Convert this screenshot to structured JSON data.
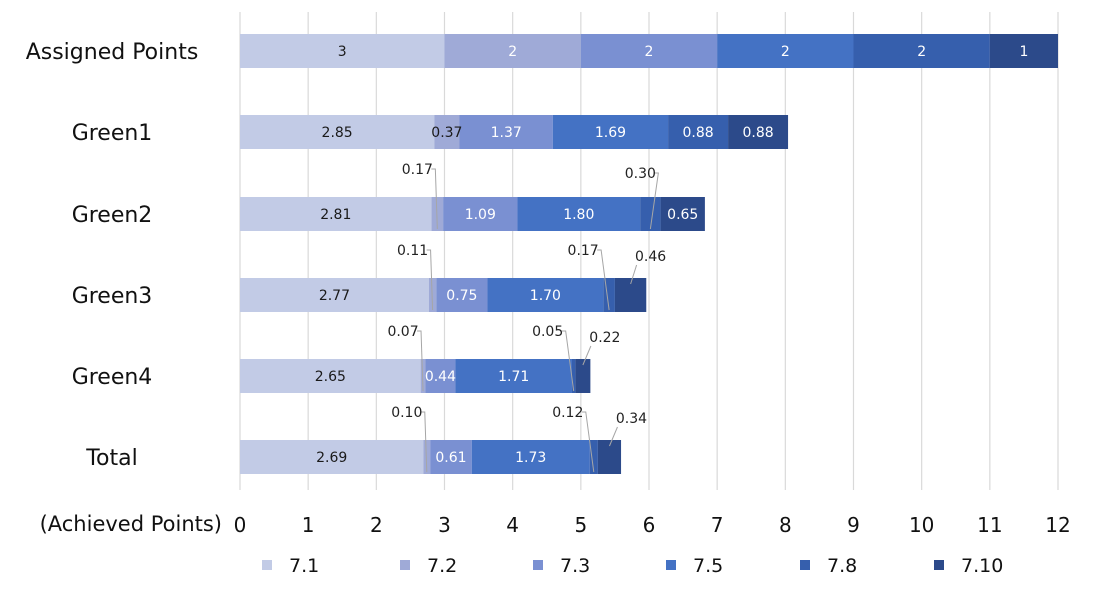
{
  "chart_data": {
    "type": "bar",
    "orientation": "horizontal",
    "stacked": true,
    "xlabel": "(Achieved Points)",
    "xlim": [
      0,
      12
    ],
    "x_ticks": [
      "0",
      "1",
      "2",
      "3",
      "4",
      "5",
      "6",
      "7",
      "8",
      "9",
      "10",
      "11",
      "12"
    ],
    "grid": "vertical",
    "legend_position": "bottom",
    "categories": [
      "Assigned Points",
      "Green1",
      "Green2",
      "Green3",
      "Green4",
      "Total"
    ],
    "series": [
      {
        "name": "7.1",
        "color": "#c2cbe6",
        "values": [
          3,
          2.85,
          2.81,
          2.77,
          2.65,
          2.69
        ],
        "labels": [
          "3",
          "2.85",
          "2.81",
          "2.77",
          "2.65",
          "2.69"
        ]
      },
      {
        "name": "7.2",
        "color": "#9faad7",
        "values": [
          2,
          0.37,
          0.17,
          0.11,
          0.07,
          0.1
        ],
        "labels": [
          "2",
          "0.37",
          "0.17",
          "0.11",
          "0.07",
          "0.10"
        ]
      },
      {
        "name": "7.3",
        "color": "#7a90d2",
        "values": [
          2,
          1.37,
          1.09,
          0.75,
          0.44,
          0.61
        ],
        "labels": [
          "2",
          "1.37",
          "1.09",
          "0.75",
          "0.44",
          "0.61"
        ]
      },
      {
        "name": "7.5",
        "color": "#4472c4",
        "values": [
          2,
          1.69,
          1.8,
          1.7,
          1.71,
          1.73
        ],
        "labels": [
          "2",
          "1.69",
          "1.80",
          "1.70",
          "1.71",
          "1.73"
        ]
      },
      {
        "name": "7.8",
        "color": "#365fad",
        "values": [
          2,
          0.88,
          0.3,
          0.17,
          0.05,
          0.12
        ],
        "labels": [
          "2",
          "0.88",
          "0.30",
          "0.17",
          "0.05",
          "0.12"
        ]
      },
      {
        "name": "7.10",
        "color": "#2c4a8a",
        "values": [
          1,
          0.88,
          0.65,
          0.46,
          0.22,
          0.34
        ],
        "labels": [
          "1",
          "0.88",
          "0.65",
          "0.46",
          "0.22",
          "0.34"
        ]
      }
    ],
    "external_labels": [
      {
        "category": "Green2",
        "series": "7.2",
        "text": "0.17"
      },
      {
        "category": "Green2",
        "series": "7.8",
        "text": "0.30"
      },
      {
        "category": "Green3",
        "series": "7.2",
        "text": "0.11"
      },
      {
        "category": "Green3",
        "series": "7.8",
        "text": "0.17"
      },
      {
        "category": "Green3",
        "series": "7.10",
        "text": "0.46"
      },
      {
        "category": "Green4",
        "series": "7.2",
        "text": "0.07"
      },
      {
        "category": "Green4",
        "series": "7.8",
        "text": "0.05"
      },
      {
        "category": "Green4",
        "series": "7.10",
        "text": "0.22"
      },
      {
        "category": "Total",
        "series": "7.2",
        "text": "0.10"
      },
      {
        "category": "Total",
        "series": "7.8",
        "text": "0.12"
      },
      {
        "category": "Total",
        "series": "7.10",
        "text": "0.34"
      }
    ]
  }
}
